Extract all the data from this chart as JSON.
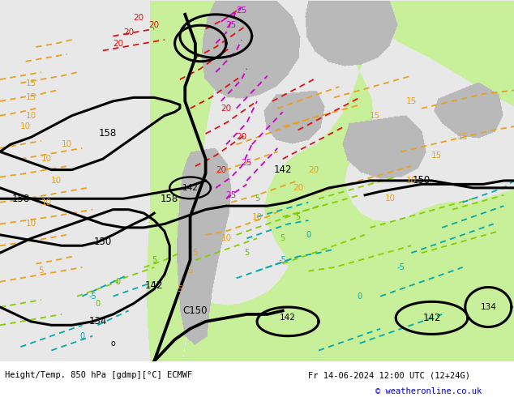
{
  "fig_width": 6.34,
  "fig_height": 4.9,
  "dpi": 100,
  "bottom_left_text": "Height/Temp. 850 hPa [gdmp][°C] ECMWF",
  "bottom_right_text": "Fr 14-06-2024 12:00 UTC (12+24G)",
  "copyright_text": "© weatheronline.co.uk",
  "copyright_color": "#0000cc",
  "bottom_text_color": "#000000",
  "bg_color": "#e8e8e8",
  "green_color": "#c8f0a0",
  "gray_color": "#b8b8b8",
  "white_color": "#f0f0f0"
}
